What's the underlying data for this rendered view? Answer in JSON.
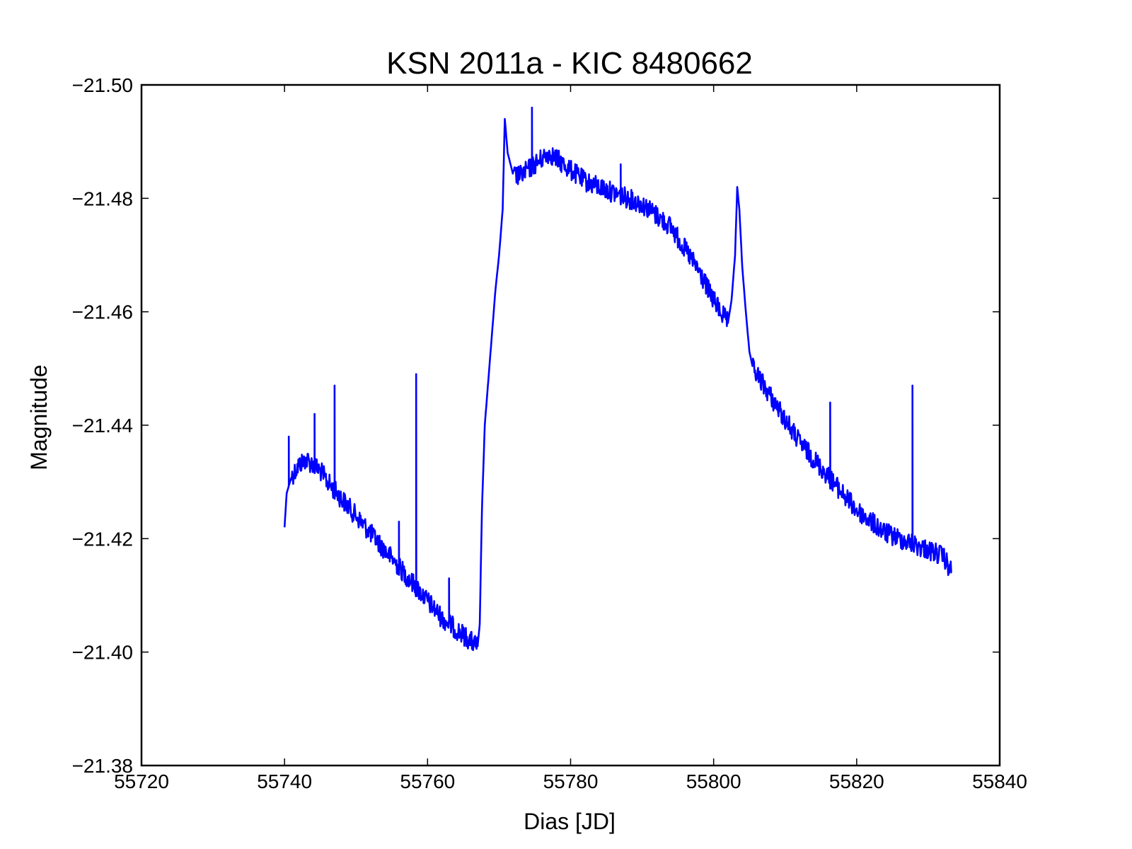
{
  "chart_data": {
    "type": "line",
    "title": "KSN 2011a - KIC 8480662",
    "xlabel": "Dias [JD]",
    "ylabel": "Magnitude",
    "xlim": [
      55720,
      55840
    ],
    "ylim": [
      -21.38,
      -21.5
    ],
    "y_axis_inverted": true,
    "grid": false,
    "legend": "none",
    "x_ticks": [
      55720,
      55740,
      55760,
      55780,
      55800,
      55820,
      55840
    ],
    "x_tick_labels": [
      "55720",
      "55740",
      "55760",
      "55780",
      "55800",
      "55820",
      "55840"
    ],
    "y_ticks": [
      -21.5,
      -21.48,
      -21.46,
      -21.44,
      -21.42,
      -21.4,
      -21.38
    ],
    "y_tick_labels": [
      "−21.50",
      "−21.48",
      "−21.46",
      "−21.44",
      "−21.42",
      "−21.40",
      "−21.38"
    ],
    "line_color": "#0000ff",
    "noise_amplitude": 0.0018,
    "series": [
      {
        "x": [
          55740.0,
          55740.3,
          55741.0,
          55742.0,
          55743.0,
          55744.0,
          55745.0,
          55746.0,
          55748.0,
          55750.0,
          55752.0,
          55754.0,
          55756.0,
          55758.0,
          55760.0,
          55762.0,
          55764.0,
          55766.0,
          55767.0,
          55767.3,
          55767.6,
          55768.0,
          55768.5,
          55769.0,
          55769.5,
          55770.0,
          55770.5,
          55770.8,
          55771.2,
          55772.0,
          55773.0,
          55775.0,
          55777.0,
          55778.0,
          55780.0,
          55782.0,
          55784.0,
          55786.0,
          55788.0,
          55790.0,
          55792.0,
          55794.0,
          55796.0,
          55798.0,
          55800.0,
          55801.0,
          55802.0,
          55802.5,
          55803.0,
          55803.3,
          55803.6,
          55804.0,
          55804.5,
          55805.0,
          55805.5,
          55806.0,
          55808.0,
          55810.0,
          55812.0,
          55814.0,
          55816.0,
          55818.0,
          55820.0,
          55822.0,
          55824.0,
          55826.0,
          55828.0,
          55830.0,
          55832.0,
          55833.3
        ],
        "y": [
          -21.422,
          -21.428,
          -21.431,
          -21.433,
          -21.434,
          -21.433,
          -21.432,
          -21.43,
          -21.427,
          -21.424,
          -21.421,
          -21.418,
          -21.415,
          -21.412,
          -21.409,
          -21.406,
          -21.404,
          -21.402,
          -21.401,
          -21.405,
          -21.425,
          -21.44,
          -21.448,
          -21.456,
          -21.464,
          -21.47,
          -21.478,
          -21.494,
          -21.488,
          -21.484,
          -21.484,
          -21.486,
          -21.488,
          -21.487,
          -21.485,
          -21.483,
          -21.482,
          -21.481,
          -21.48,
          -21.479,
          -21.477,
          -21.475,
          -21.471,
          -21.467,
          -21.462,
          -21.46,
          -21.458,
          -21.462,
          -21.47,
          -21.482,
          -21.478,
          -21.468,
          -21.46,
          -21.453,
          -21.45,
          -21.449,
          -21.445,
          -21.441,
          -21.437,
          -21.434,
          -21.431,
          -21.428,
          -21.425,
          -21.423,
          -21.421,
          -21.42,
          -21.419,
          -21.418,
          -21.417,
          -21.414
        ]
      }
    ],
    "spikes": [
      {
        "x": 55740.6,
        "y": -21.438
      },
      {
        "x": 55744.2,
        "y": -21.442
      },
      {
        "x": 55747.0,
        "y": -21.447
      },
      {
        "x": 55756.0,
        "y": -21.423
      },
      {
        "x": 55758.4,
        "y": -21.449
      },
      {
        "x": 55763.0,
        "y": -21.413
      },
      {
        "x": 55774.6,
        "y": -21.496
      },
      {
        "x": 55787.0,
        "y": -21.486
      },
      {
        "x": 55816.3,
        "y": -21.444
      },
      {
        "x": 55827.8,
        "y": -21.447
      }
    ]
  }
}
